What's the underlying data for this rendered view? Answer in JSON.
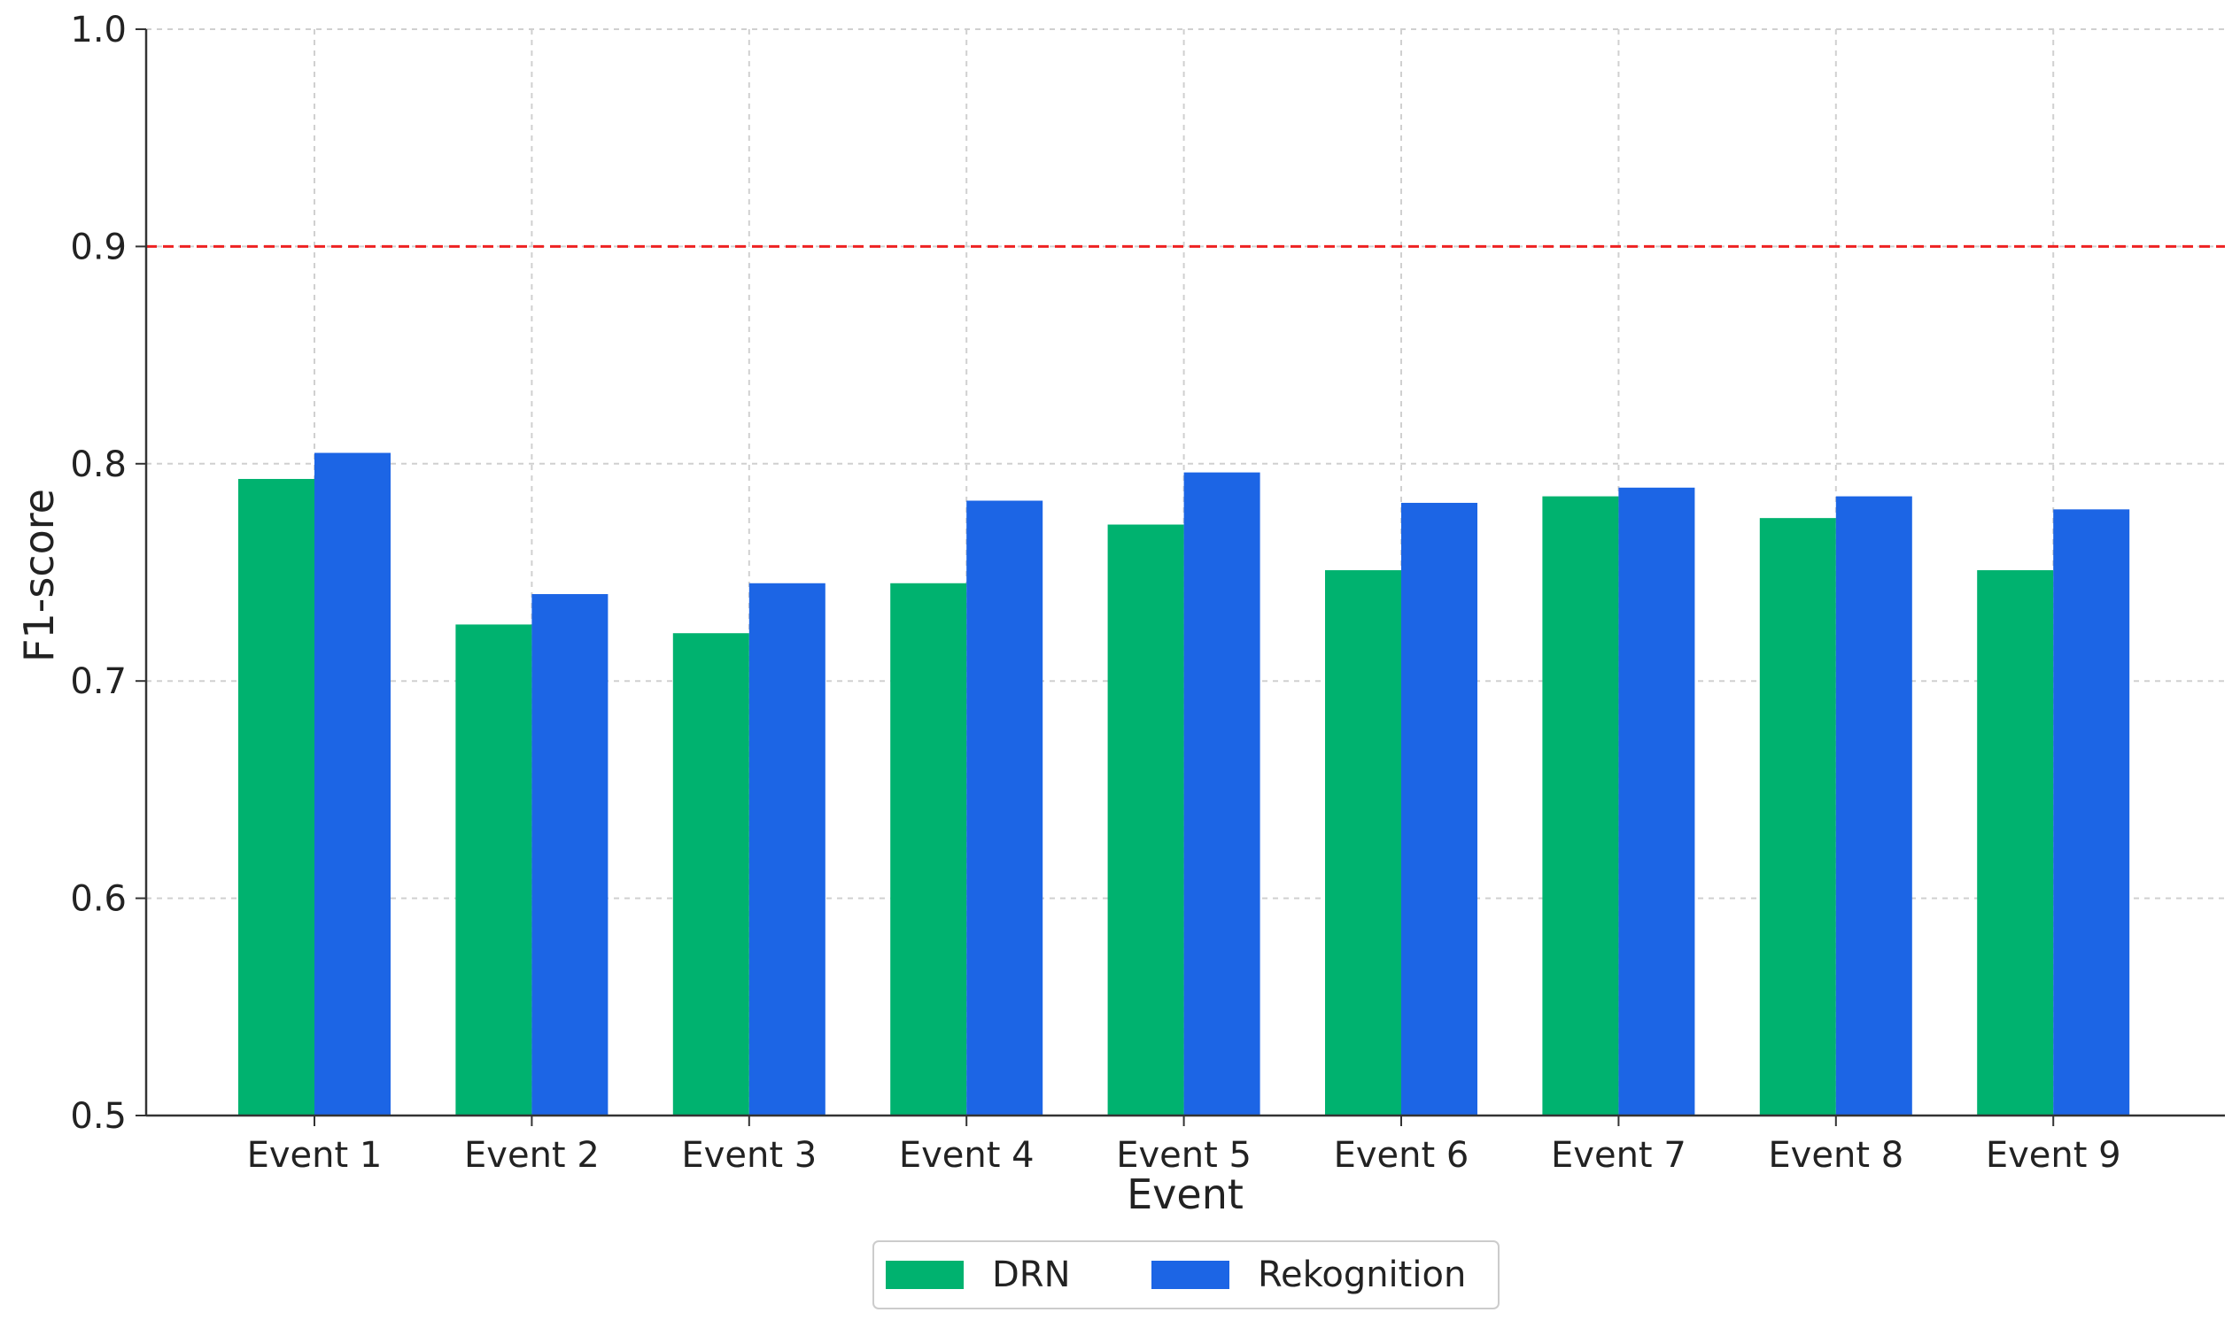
{
  "chart_data": {
    "type": "bar",
    "title": "",
    "xlabel": "Event",
    "ylabel": "F1-score",
    "ylim": [
      0.5,
      1.0
    ],
    "yticks": [
      "0.5",
      "0.6",
      "0.7",
      "0.8",
      "0.9",
      "1.0"
    ],
    "categories": [
      "Event 1",
      "Event 2",
      "Event 3",
      "Event 4",
      "Event 5",
      "Event 6",
      "Event 7",
      "Event 8",
      "Event 9"
    ],
    "series": [
      {
        "name": "DRN",
        "color": "#00b26f",
        "values": [
          0.793,
          0.726,
          0.722,
          0.745,
          0.772,
          0.751,
          0.785,
          0.775,
          0.751
        ]
      },
      {
        "name": "Rekognition",
        "color": "#1c65e5",
        "values": [
          0.805,
          0.74,
          0.745,
          0.783,
          0.796,
          0.782,
          0.789,
          0.785,
          0.779
        ]
      }
    ],
    "reference_line": {
      "value": 0.9,
      "color": "#ee2222",
      "style": "dashed"
    },
    "grid": true,
    "legend_position": "bottom-center"
  }
}
